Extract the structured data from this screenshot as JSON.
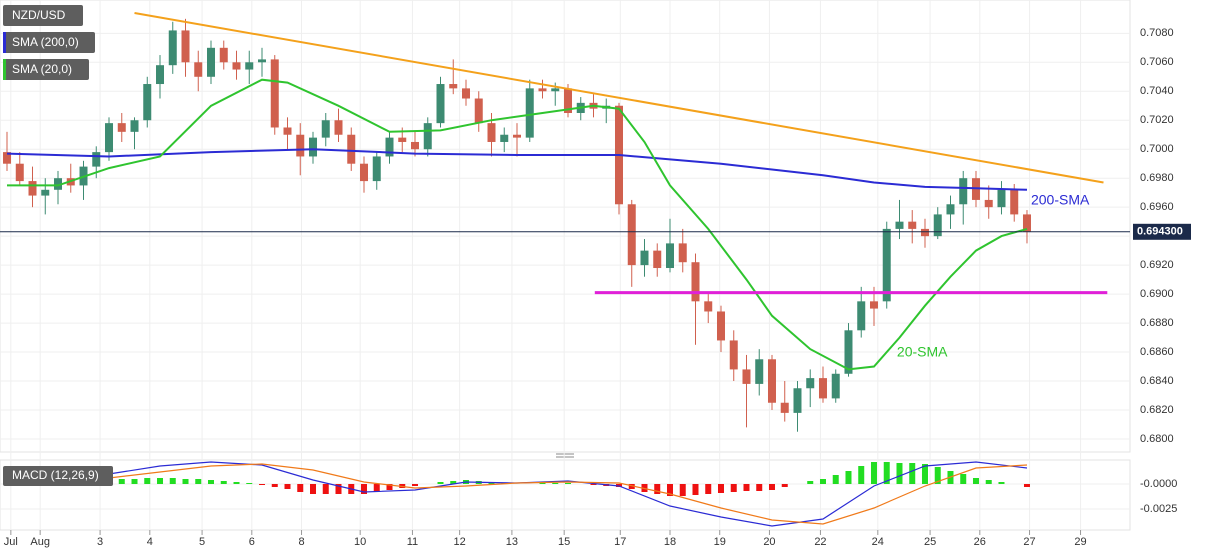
{
  "chart_data": [
    {
      "type": "candlestick",
      "title": "NZD/USD",
      "xlim": [
        -0.55,
        88.08
      ],
      "xticks": [
        {
          "value": 0.3,
          "label": "Jul"
        },
        {
          "value": 2.6,
          "label": "Aug"
        },
        {
          "value": 7.3,
          "label": "3"
        },
        {
          "value": 11.2,
          "label": "4"
        },
        {
          "value": 15.3,
          "label": "5"
        },
        {
          "value": 19.2,
          "label": "6"
        },
        {
          "value": 23.1,
          "label": "8"
        },
        {
          "value": 27.7,
          "label": "10"
        },
        {
          "value": 31.8,
          "label": "11"
        },
        {
          "value": 35.5,
          "label": "12"
        },
        {
          "value": 39.6,
          "label": "13"
        },
        {
          "value": 43.7,
          "label": "15"
        },
        {
          "value": 48.1,
          "label": "17"
        },
        {
          "value": 52,
          "label": "18"
        },
        {
          "value": 55.9,
          "label": "19"
        },
        {
          "value": 59.8,
          "label": "20"
        },
        {
          "value": 63.8,
          "label": "22"
        },
        {
          "value": 68.3,
          "label": "24"
        },
        {
          "value": 72.4,
          "label": "25"
        },
        {
          "value": 76.3,
          "label": "26"
        },
        {
          "value": 80.2,
          "label": "27"
        },
        {
          "value": 84.2,
          "label": "29"
        }
      ],
      "ylim": [
        0.6791,
        0.7103
      ],
      "yticks": [
        {
          "value": 0.68,
          "label": "0.6800"
        },
        {
          "value": 0.682,
          "label": "0.6820"
        },
        {
          "value": 0.684,
          "label": "0.6840"
        },
        {
          "value": 0.686,
          "label": "0.6860"
        },
        {
          "value": 0.688,
          "label": "0.6880"
        },
        {
          "value": 0.69,
          "label": "0.6900"
        },
        {
          "value": 0.692,
          "label": "0.6920"
        },
        {
          "value": 0.694,
          "label": "0.6940"
        },
        {
          "value": 0.696,
          "label": "0.6960"
        },
        {
          "value": 0.698,
          "label": "0.6980"
        },
        {
          "value": 0.7,
          "label": "0.7000"
        },
        {
          "value": 0.702,
          "label": "0.7020"
        },
        {
          "value": 0.704,
          "label": "0.7040"
        },
        {
          "value": 0.706,
          "label": "0.7060"
        },
        {
          "value": 0.708,
          "label": "0.7080"
        }
      ],
      "grid": true,
      "up_color": "#3d8b72",
      "down_color": "#d0604e",
      "candles": [
        [
          0.6998,
          0.7012,
          0.6985,
          0.699
        ],
        [
          0.699,
          0.6998,
          0.6975,
          0.6978
        ],
        [
          0.6978,
          0.6988,
          0.696,
          0.6968
        ],
        [
          0.6968,
          0.698,
          0.6955,
          0.6972
        ],
        [
          0.6972,
          0.6985,
          0.6962,
          0.698
        ],
        [
          0.698,
          0.699,
          0.697,
          0.6975
        ],
        [
          0.6975,
          0.6992,
          0.6965,
          0.6988
        ],
        [
          0.6988,
          0.7002,
          0.698,
          0.6998
        ],
        [
          0.6998,
          0.7022,
          0.6992,
          0.7018
        ],
        [
          0.7018,
          0.7025,
          0.7005,
          0.7012
        ],
        [
          0.7012,
          0.7022,
          0.7,
          0.702
        ],
        [
          0.702,
          0.705,
          0.7015,
          0.7045
        ],
        [
          0.7045,
          0.7065,
          0.7035,
          0.7058
        ],
        [
          0.7058,
          0.7088,
          0.7052,
          0.7082
        ],
        [
          0.7082,
          0.709,
          0.705,
          0.706
        ],
        [
          0.706,
          0.7068,
          0.704,
          0.705
        ],
        [
          0.705,
          0.7075,
          0.7045,
          0.707
        ],
        [
          0.707,
          0.7075,
          0.7055,
          0.706
        ],
        [
          0.706,
          0.7068,
          0.7048,
          0.7055
        ],
        [
          0.7055,
          0.7068,
          0.7045,
          0.706
        ],
        [
          0.706,
          0.707,
          0.705,
          0.7062
        ],
        [
          0.7062,
          0.7065,
          0.701,
          0.7015
        ],
        [
          0.7015,
          0.7022,
          0.7,
          0.701
        ],
        [
          0.701,
          0.7018,
          0.6982,
          0.6995
        ],
        [
          0.6995,
          0.7012,
          0.699,
          0.7008
        ],
        [
          0.7008,
          0.7025,
          0.7002,
          0.702
        ],
        [
          0.702,
          0.7028,
          0.7005,
          0.701
        ],
        [
          0.701,
          0.7015,
          0.6985,
          0.699
        ],
        [
          0.699,
          0.6995,
          0.697,
          0.6978
        ],
        [
          0.6978,
          0.6998,
          0.6972,
          0.6995
        ],
        [
          0.6995,
          0.7012,
          0.699,
          0.7008
        ],
        [
          0.7008,
          0.7015,
          0.6998,
          0.7005
        ],
        [
          0.7005,
          0.7012,
          0.6995,
          0.7
        ],
        [
          0.7,
          0.7022,
          0.6995,
          0.7018
        ],
        [
          0.7018,
          0.705,
          0.7015,
          0.7045
        ],
        [
          0.7045,
          0.7062,
          0.7038,
          0.7042
        ],
        [
          0.7042,
          0.7048,
          0.703,
          0.7035
        ],
        [
          0.7035,
          0.704,
          0.7012,
          0.7018
        ],
        [
          0.7018,
          0.7025,
          0.6995,
          0.7005
        ],
        [
          0.7005,
          0.7015,
          0.6998,
          0.701
        ],
        [
          0.701,
          0.7018,
          0.6995,
          0.7008
        ],
        [
          0.7008,
          0.7048,
          0.7005,
          0.7042
        ],
        [
          0.7042,
          0.7048,
          0.7035,
          0.704
        ],
        [
          0.704,
          0.7046,
          0.703,
          0.7042
        ],
        [
          0.7042,
          0.7045,
          0.7022,
          0.7025
        ],
        [
          0.7025,
          0.7036,
          0.702,
          0.7032
        ],
        [
          0.7032,
          0.7038,
          0.7022,
          0.7028
        ],
        [
          0.7028,
          0.7035,
          0.7018,
          0.703
        ],
        [
          0.703,
          0.7032,
          0.6955,
          0.6962
        ],
        [
          0.6962,
          0.6965,
          0.6905,
          0.692
        ],
        [
          0.692,
          0.6938,
          0.6912,
          0.693
        ],
        [
          0.693,
          0.6935,
          0.6912,
          0.6918
        ],
        [
          0.6918,
          0.6952,
          0.6915,
          0.6935
        ],
        [
          0.6935,
          0.6945,
          0.6915,
          0.6922
        ],
        [
          0.6922,
          0.6928,
          0.6865,
          0.6895
        ],
        [
          0.6895,
          0.69,
          0.688,
          0.6888
        ],
        [
          0.6888,
          0.6892,
          0.686,
          0.6868
        ],
        [
          0.6868,
          0.6875,
          0.684,
          0.6848
        ],
        [
          0.6848,
          0.6858,
          0.6808,
          0.6838
        ],
        [
          0.6838,
          0.6862,
          0.683,
          0.6855
        ],
        [
          0.6855,
          0.6858,
          0.682,
          0.6825
        ],
        [
          0.6825,
          0.684,
          0.6812,
          0.6818
        ],
        [
          0.6818,
          0.684,
          0.6805,
          0.6835
        ],
        [
          0.6835,
          0.6848,
          0.6822,
          0.6842
        ],
        [
          0.6842,
          0.685,
          0.6825,
          0.6828
        ],
        [
          0.6828,
          0.6848,
          0.6825,
          0.6845
        ],
        [
          0.6845,
          0.688,
          0.6843,
          0.6875
        ],
        [
          0.6875,
          0.6905,
          0.687,
          0.6895
        ],
        [
          0.6895,
          0.6905,
          0.6878,
          0.689
        ],
        [
          0.6895,
          0.695,
          0.689,
          0.6945
        ],
        [
          0.6945,
          0.6965,
          0.6938,
          0.695
        ],
        [
          0.695,
          0.6958,
          0.6935,
          0.6945
        ],
        [
          0.6945,
          0.6952,
          0.6932,
          0.694
        ],
        [
          0.694,
          0.696,
          0.6938,
          0.6955
        ],
        [
          0.6955,
          0.6968,
          0.6945,
          0.6962
        ],
        [
          0.6962,
          0.6985,
          0.6948,
          0.698
        ],
        [
          0.698,
          0.6985,
          0.696,
          0.6965
        ],
        [
          0.6965,
          0.6975,
          0.6952,
          0.696
        ],
        [
          0.696,
          0.6978,
          0.6955,
          0.6972
        ],
        [
          0.6972,
          0.6976,
          0.695,
          0.6955
        ],
        [
          0.6955,
          0.6958,
          0.6935,
          0.6943
        ]
      ],
      "series": [
        {
          "name": "SMA (200,0)",
          "label": "200-SMA",
          "color": "#2b2bd4",
          "x": [
            0,
            8,
            16,
            24,
            32,
            40,
            48,
            52,
            56,
            60,
            64,
            68,
            72,
            76,
            80
          ],
          "values": [
            0.6997,
            0.6995,
            0.6998,
            0.7,
            0.6997,
            0.6996,
            0.6996,
            0.6993,
            0.699,
            0.6986,
            0.6982,
            0.6977,
            0.6974,
            0.6973,
            0.6972
          ]
        },
        {
          "name": "SMA (20,0)",
          "label": "20-SMA",
          "color": "#2fc42f",
          "x": [
            0,
            4,
            8,
            12,
            16,
            20,
            22,
            26,
            30,
            34,
            38,
            42,
            46,
            48,
            50,
            52,
            55,
            58,
            60,
            63,
            66,
            68,
            70,
            72,
            74,
            76,
            78,
            80
          ],
          "values": [
            0.6975,
            0.6975,
            0.6987,
            0.6995,
            0.703,
            0.7048,
            0.7046,
            0.703,
            0.7012,
            0.7013,
            0.702,
            0.7025,
            0.703,
            0.7028,
            0.7005,
            0.6975,
            0.6945,
            0.691,
            0.6885,
            0.6862,
            0.6848,
            0.685,
            0.687,
            0.6892,
            0.6912,
            0.693,
            0.694,
            0.6945
          ]
        }
      ],
      "trend_line": {
        "color": "#f4a11b",
        "x": [
          10,
          86
        ],
        "values": [
          0.7094,
          0.6977
        ]
      },
      "support_line": {
        "color": "#e020d8",
        "x": [
          46.1,
          86.3
        ],
        "values": [
          0.6901,
          0.6901
        ]
      },
      "last_price": {
        "value": 0.6943,
        "label": "0.694300"
      }
    },
    {
      "type": "macd",
      "title": "MACD (12,26,9)",
      "ylim": [
        -0.0046,
        0.0024
      ],
      "yticks": [
        {
          "value": 0,
          "label": "-0.0000"
        },
        {
          "value": -0.0025,
          "label": "-0.0025"
        }
      ],
      "lines": [
        {
          "color": "#2b2bd4",
          "x": [
            0,
            4,
            8,
            12,
            16,
            20,
            24,
            28,
            32,
            36,
            40,
            44,
            48,
            52,
            56,
            60,
            64,
            68,
            72,
            76,
            80
          ],
          "values": [
            0.0002,
            0.0005,
            0.001,
            0.0018,
            0.0022,
            0.0019,
            0.0004,
            -0.0008,
            -0.0006,
            0.0002,
            0.0001,
            0.0003,
            -0.0002,
            -0.0022,
            -0.0033,
            -0.0042,
            -0.0035,
            -0.0002,
            0.0018,
            0.0022,
            0.0016
          ]
        },
        {
          "color": "#f07a1a",
          "x": [
            0,
            4,
            8,
            12,
            16,
            20,
            24,
            28,
            32,
            36,
            40,
            44,
            48,
            52,
            56,
            60,
            64,
            68,
            72,
            76,
            80
          ],
          "values": [
            0,
            0.0002,
            0.0006,
            0.0012,
            0.0018,
            0.002,
            0.0014,
            0.0002,
            -0.0004,
            -0.0002,
            0.0001,
            0.0002,
            0.0001,
            -0.001,
            -0.0024,
            -0.0036,
            -0.004,
            -0.0024,
            -0.0002,
            0.0016,
            0.0019
          ]
        }
      ],
      "histogram": {
        "up_color": "#22dd22",
        "down_color": "#ee1111",
        "values": [
          0.0002,
          0.0002,
          0.0002,
          0.0003,
          0.0003,
          0.0003,
          0.0004,
          0.0004,
          0.0004,
          0.0005,
          0.0005,
          0.0006,
          0.0006,
          0.0006,
          0.0005,
          0.0005,
          0.0004,
          0.0003,
          0.0002,
          0.0001,
          -0.0001,
          -0.0003,
          -0.0005,
          -0.0008,
          -0.001,
          -0.001,
          -0.001,
          -0.001,
          -0.001,
          -0.0008,
          -0.0006,
          -0.0004,
          -0.0002,
          0,
          0.0002,
          0.0003,
          0.0004,
          0.0003,
          0.0002,
          0.0001,
          0,
          0,
          0.0001,
          0.0001,
          0.0001,
          0,
          -0.0001,
          -0.0002,
          -0.0003,
          -0.0005,
          -0.0008,
          -0.001,
          -0.0012,
          -0.0012,
          -0.0011,
          -0.001,
          -0.0009,
          -0.0008,
          -0.0007,
          -0.0007,
          -0.0006,
          -0.0003,
          0,
          0.0003,
          0.0005,
          0.0009,
          0.0013,
          0.0018,
          0.0022,
          0.0022,
          0.0021,
          0.0021,
          0.002,
          0.0017,
          0.0013,
          0.001,
          0.0006,
          0.0004,
          0.0002,
          0,
          -0.0003
        ]
      }
    }
  ]
}
